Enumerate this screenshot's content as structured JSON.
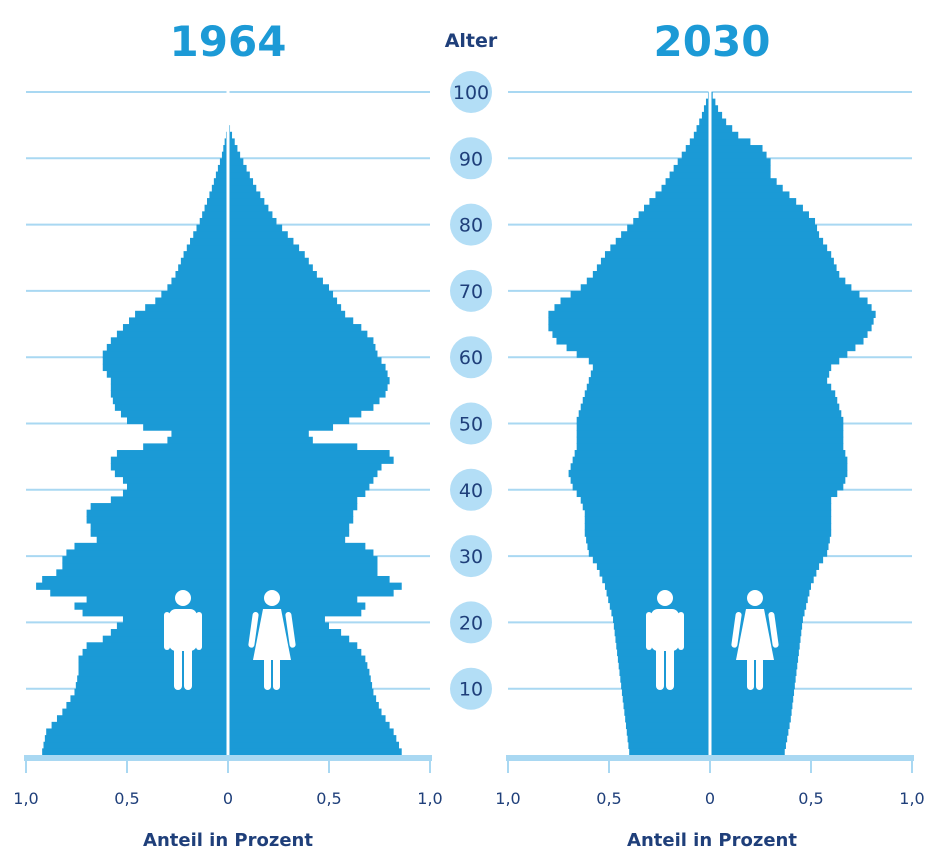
{
  "colors": {
    "bar": "#1b9ad6",
    "grid": "#a9d8f2",
    "axis": "#a9d8f2",
    "circle": "#b3def6",
    "text": "#1f3f7a",
    "year": "#1c9ad6"
  },
  "center_label": "Alter",
  "age_ticks": [
    "10",
    "20",
    "30",
    "40",
    "50",
    "60",
    "70",
    "80",
    "90",
    "100"
  ],
  "icons": {
    "male": "man-icon",
    "female": "woman-icon"
  },
  "chart_data": [
    {
      "type": "bar",
      "title": "1964",
      "xlabel": "Anteil in Prozent",
      "ylabel": "Alter",
      "xlim": [
        0,
        1.0
      ],
      "ylim": [
        0,
        100
      ],
      "x_tick_labels": [
        "1,0",
        "0,5",
        "0",
        "0,5",
        "1,0"
      ],
      "age_ticks": [
        10,
        20,
        30,
        40,
        50,
        60,
        70,
        80,
        90,
        100
      ],
      "anchors": {
        "male": [
          [
            0,
            0.92
          ],
          [
            3,
            0.9
          ],
          [
            6,
            0.82
          ],
          [
            9,
            0.76
          ],
          [
            12,
            0.74
          ],
          [
            14,
            0.74
          ],
          [
            16,
            0.7
          ],
          [
            17,
            0.62
          ],
          [
            18,
            0.58
          ],
          [
            19,
            0.55
          ],
          [
            20,
            0.52
          ],
          [
            21,
            0.72
          ],
          [
            22,
            0.76
          ],
          [
            23,
            0.7
          ],
          [
            24,
            0.88
          ],
          [
            25,
            0.95
          ],
          [
            26,
            0.92
          ],
          [
            27,
            0.85
          ],
          [
            28,
            0.82
          ],
          [
            29,
            0.82
          ],
          [
            30,
            0.8
          ],
          [
            31,
            0.76
          ],
          [
            32,
            0.65
          ],
          [
            33,
            0.68
          ],
          [
            34,
            0.68
          ],
          [
            35,
            0.7
          ],
          [
            36,
            0.7
          ],
          [
            37,
            0.68
          ],
          [
            38,
            0.58
          ],
          [
            39,
            0.52
          ],
          [
            40,
            0.5
          ],
          [
            41,
            0.52
          ],
          [
            42,
            0.56
          ],
          [
            43,
            0.58
          ],
          [
            44,
            0.58
          ],
          [
            45,
            0.55
          ],
          [
            46,
            0.42
          ],
          [
            47,
            0.3
          ],
          [
            48,
            0.28
          ],
          [
            49,
            0.42
          ],
          [
            50,
            0.5
          ],
          [
            52,
            0.56
          ],
          [
            54,
            0.58
          ],
          [
            56,
            0.58
          ],
          [
            58,
            0.62
          ],
          [
            60,
            0.62
          ],
          [
            62,
            0.58
          ],
          [
            64,
            0.52
          ],
          [
            66,
            0.46
          ],
          [
            68,
            0.36
          ],
          [
            70,
            0.3
          ],
          [
            72,
            0.26
          ],
          [
            75,
            0.22
          ],
          [
            80,
            0.14
          ],
          [
            85,
            0.08
          ],
          [
            90,
            0.03
          ],
          [
            93,
            0.01
          ],
          [
            95,
            0.0
          ]
        ],
        "female": [
          [
            0,
            0.86
          ],
          [
            3,
            0.82
          ],
          [
            6,
            0.76
          ],
          [
            9,
            0.72
          ],
          [
            12,
            0.7
          ],
          [
            14,
            0.68
          ],
          [
            16,
            0.64
          ],
          [
            17,
            0.6
          ],
          [
            18,
            0.56
          ],
          [
            19,
            0.5
          ],
          [
            20,
            0.48
          ],
          [
            21,
            0.66
          ],
          [
            22,
            0.68
          ],
          [
            23,
            0.64
          ],
          [
            24,
            0.82
          ],
          [
            25,
            0.86
          ],
          [
            26,
            0.8
          ],
          [
            27,
            0.74
          ],
          [
            28,
            0.74
          ],
          [
            29,
            0.74
          ],
          [
            30,
            0.72
          ],
          [
            31,
            0.68
          ],
          [
            32,
            0.58
          ],
          [
            33,
            0.6
          ],
          [
            34,
            0.6
          ],
          [
            35,
            0.62
          ],
          [
            36,
            0.62
          ],
          [
            37,
            0.64
          ],
          [
            38,
            0.64
          ],
          [
            39,
            0.68
          ],
          [
            40,
            0.7
          ],
          [
            41,
            0.72
          ],
          [
            42,
            0.74
          ],
          [
            43,
            0.76
          ],
          [
            44,
            0.82
          ],
          [
            45,
            0.8
          ],
          [
            46,
            0.64
          ],
          [
            47,
            0.42
          ],
          [
            48,
            0.4
          ],
          [
            49,
            0.52
          ],
          [
            50,
            0.6
          ],
          [
            52,
            0.72
          ],
          [
            54,
            0.78
          ],
          [
            56,
            0.8
          ],
          [
            58,
            0.78
          ],
          [
            60,
            0.74
          ],
          [
            62,
            0.72
          ],
          [
            64,
            0.66
          ],
          [
            66,
            0.58
          ],
          [
            68,
            0.54
          ],
          [
            70,
            0.5
          ],
          [
            72,
            0.44
          ],
          [
            75,
            0.38
          ],
          [
            80,
            0.24
          ],
          [
            85,
            0.14
          ],
          [
            90,
            0.06
          ],
          [
            93,
            0.02
          ],
          [
            95,
            0.0
          ]
        ]
      }
    },
    {
      "type": "bar",
      "title": "2030",
      "xlabel": "Anteil in Prozent",
      "ylabel": "Alter",
      "xlim": [
        0,
        1.0
      ],
      "ylim": [
        0,
        100
      ],
      "x_tick_labels": [
        "1,0",
        "0,5",
        "0",
        "0,5",
        "1,0"
      ],
      "age_ticks": [
        10,
        20,
        30,
        40,
        50,
        60,
        70,
        80,
        90,
        100
      ],
      "anchors": {
        "male": [
          [
            0,
            0.4
          ],
          [
            5,
            0.42
          ],
          [
            10,
            0.44
          ],
          [
            15,
            0.46
          ],
          [
            20,
            0.48
          ],
          [
            25,
            0.52
          ],
          [
            28,
            0.56
          ],
          [
            30,
            0.6
          ],
          [
            33,
            0.62
          ],
          [
            36,
            0.62
          ],
          [
            38,
            0.64
          ],
          [
            40,
            0.68
          ],
          [
            42,
            0.7
          ],
          [
            44,
            0.68
          ],
          [
            46,
            0.66
          ],
          [
            48,
            0.66
          ],
          [
            50,
            0.66
          ],
          [
            52,
            0.64
          ],
          [
            54,
            0.62
          ],
          [
            56,
            0.6
          ],
          [
            58,
            0.58
          ],
          [
            59,
            0.6
          ],
          [
            60,
            0.66
          ],
          [
            62,
            0.76
          ],
          [
            64,
            0.8
          ],
          [
            66,
            0.8
          ],
          [
            68,
            0.74
          ],
          [
            70,
            0.64
          ],
          [
            72,
            0.58
          ],
          [
            75,
            0.52
          ],
          [
            78,
            0.44
          ],
          [
            80,
            0.38
          ],
          [
            83,
            0.3
          ],
          [
            85,
            0.24
          ],
          [
            88,
            0.18
          ],
          [
            90,
            0.14
          ],
          [
            93,
            0.08
          ],
          [
            96,
            0.04
          ],
          [
            98,
            0.02
          ],
          [
            100,
            0.0
          ]
        ],
        "female": [
          [
            0,
            0.37
          ],
          [
            5,
            0.4
          ],
          [
            10,
            0.42
          ],
          [
            15,
            0.44
          ],
          [
            20,
            0.46
          ],
          [
            25,
            0.5
          ],
          [
            28,
            0.54
          ],
          [
            30,
            0.58
          ],
          [
            33,
            0.6
          ],
          [
            36,
            0.6
          ],
          [
            38,
            0.6
          ],
          [
            40,
            0.66
          ],
          [
            42,
            0.68
          ],
          [
            44,
            0.68
          ],
          [
            46,
            0.66
          ],
          [
            48,
            0.66
          ],
          [
            50,
            0.66
          ],
          [
            52,
            0.64
          ],
          [
            54,
            0.62
          ],
          [
            56,
            0.58
          ],
          [
            58,
            0.6
          ],
          [
            60,
            0.68
          ],
          [
            62,
            0.76
          ],
          [
            64,
            0.8
          ],
          [
            66,
            0.82
          ],
          [
            68,
            0.78
          ],
          [
            70,
            0.7
          ],
          [
            72,
            0.64
          ],
          [
            75,
            0.6
          ],
          [
            78,
            0.54
          ],
          [
            80,
            0.52
          ],
          [
            82,
            0.46
          ],
          [
            85,
            0.36
          ],
          [
            87,
            0.3
          ],
          [
            89,
            0.3
          ],
          [
            91,
            0.26
          ],
          [
            93,
            0.14
          ],
          [
            95,
            0.08
          ],
          [
            97,
            0.04
          ],
          [
            100,
            0.0
          ]
        ]
      }
    }
  ]
}
